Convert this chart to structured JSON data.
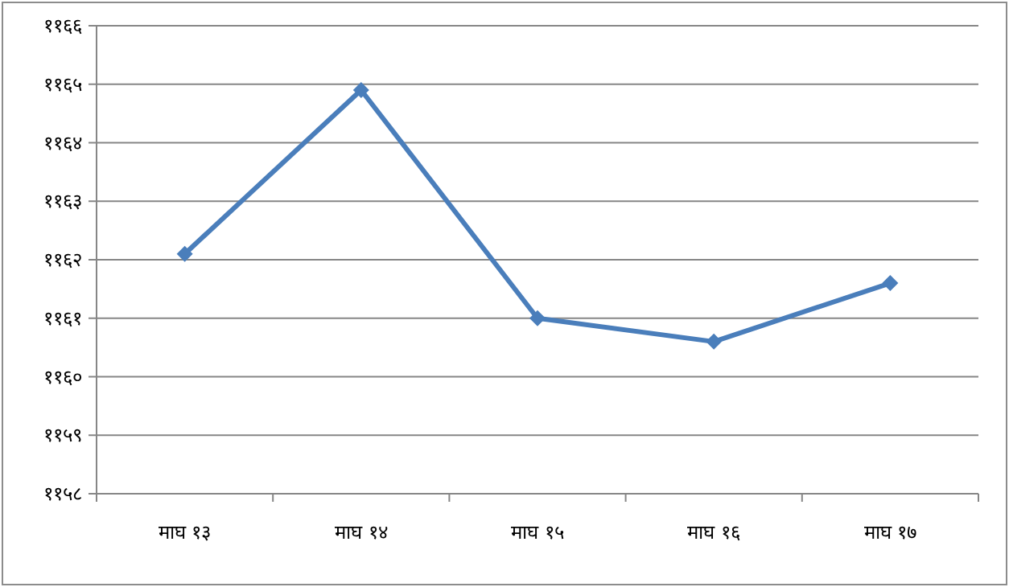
{
  "chart_data": {
    "type": "line",
    "categories": [
      "माघ १३",
      "माघ १४",
      "माघ १५",
      "माघ १६",
      "माघ १७"
    ],
    "series": [
      {
        "color": "#4a7ebb",
        "values": [
          1162.1,
          1164.9,
          1161.0,
          1160.6,
          1161.6
        ]
      }
    ],
    "ylim": [
      1158,
      1166
    ],
    "yticks": [
      {
        "value": 1158,
        "label": "११५८"
      },
      {
        "value": 1159,
        "label": "११५९"
      },
      {
        "value": 1160,
        "label": "११६०"
      },
      {
        "value": 1161,
        "label": "११६१"
      },
      {
        "value": 1162,
        "label": "११६२"
      },
      {
        "value": 1163,
        "label": "११६३"
      },
      {
        "value": 1164,
        "label": "११६४"
      },
      {
        "value": 1165,
        "label": "११६५"
      },
      {
        "value": 1166,
        "label": "११६६"
      }
    ],
    "grid": "y",
    "marker": "diamond",
    "line_style": "solid"
  }
}
